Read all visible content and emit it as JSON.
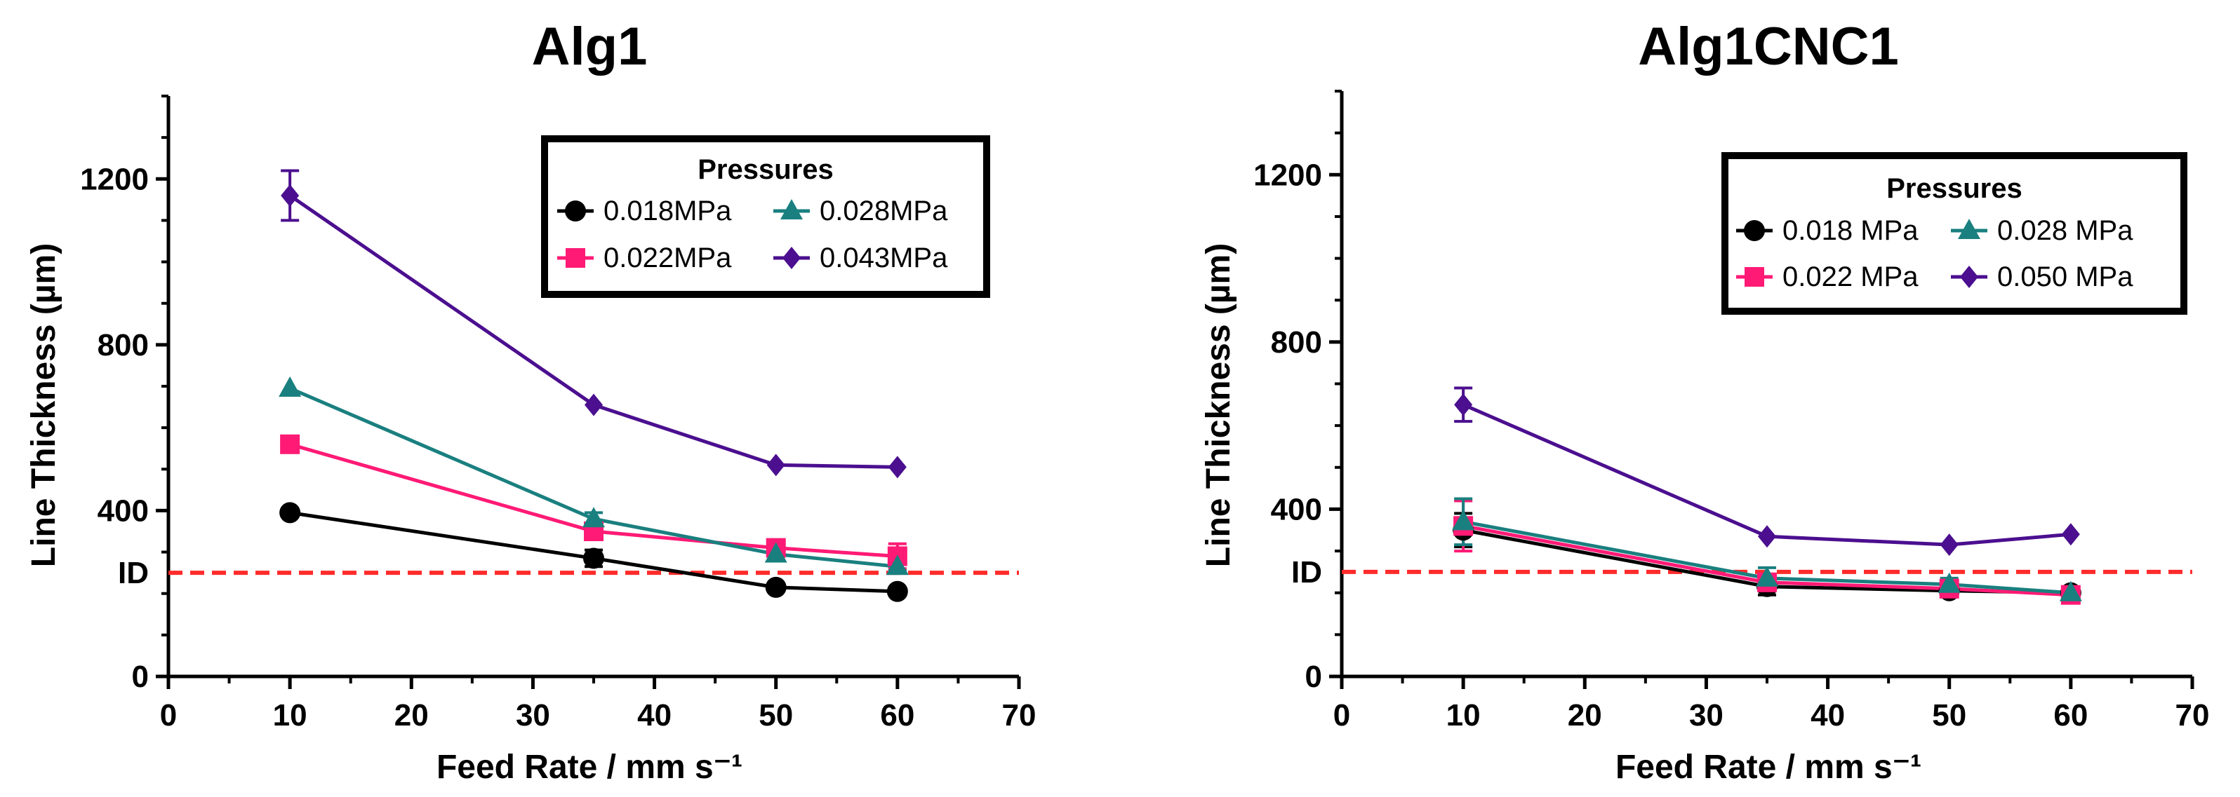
{
  "chart_data": [
    {
      "type": "line",
      "title": "Alg1",
      "xlabel": "Feed Rate / mm s⁻¹",
      "ylabel": "Line Thickness (µm)",
      "xlim": [
        0,
        70
      ],
      "ylim": [
        0,
        1400
      ],
      "xticks": [
        0,
        10,
        20,
        30,
        40,
        50,
        60,
        70
      ],
      "yticks": [
        0,
        400,
        800,
        1200
      ],
      "id_line": {
        "label": "ID",
        "value": 250,
        "color": "#ff2b2b"
      },
      "legend": {
        "title": "Pressures",
        "position": "top-right"
      },
      "series": [
        {
          "name": "0.018MPa",
          "marker": "circle",
          "color": "#000000",
          "x": [
            10,
            35,
            50,
            60
          ],
          "y": [
            395,
            285,
            215,
            205
          ],
          "err": [
            0,
            20,
            8,
            5
          ]
        },
        {
          "name": "0.022MPa",
          "marker": "square",
          "color": "#ff1a75",
          "x": [
            10,
            35,
            50,
            60
          ],
          "y": [
            560,
            350,
            310,
            290
          ],
          "err": [
            0,
            20,
            12,
            30
          ]
        },
        {
          "name": "0.028MPa",
          "marker": "triangle",
          "color": "#1a7f7f",
          "x": [
            10,
            35,
            50,
            60
          ],
          "y": [
            695,
            380,
            295,
            265
          ],
          "err": [
            0,
            15,
            15,
            10
          ]
        },
        {
          "name": "0.043MPa",
          "marker": "diamond",
          "color": "#4b0f8f",
          "x": [
            10,
            35,
            50,
            60
          ],
          "y": [
            1160,
            655,
            510,
            505
          ],
          "err": [
            60,
            0,
            0,
            0
          ]
        }
      ]
    },
    {
      "type": "line",
      "title": "Alg1CNC1",
      "xlabel": "Feed Rate / mm s⁻¹",
      "ylabel": "Line Thickness (µm)",
      "xlim": [
        0,
        70
      ],
      "ylim": [
        0,
        1400
      ],
      "xticks": [
        0,
        10,
        20,
        30,
        40,
        50,
        60,
        70
      ],
      "yticks": [
        0,
        400,
        800,
        1200
      ],
      "id_line": {
        "label": "ID",
        "value": 250,
        "color": "#ff2b2b"
      },
      "legend": {
        "title": "Pressures",
        "position": "top-right"
      },
      "series": [
        {
          "name": "0.018 MPa",
          "marker": "circle",
          "color": "#000000",
          "x": [
            10,
            35,
            50,
            60
          ],
          "y": [
            350,
            215,
            205,
            200
          ],
          "err": [
            40,
            20,
            15,
            10
          ]
        },
        {
          "name": "0.022 MPa",
          "marker": "square",
          "color": "#ff1a75",
          "x": [
            10,
            35,
            50,
            60
          ],
          "y": [
            360,
            225,
            210,
            195
          ],
          "err": [
            60,
            20,
            15,
            10
          ]
        },
        {
          "name": "0.028 MPa",
          "marker": "triangle",
          "color": "#1a7f7f",
          "x": [
            10,
            35,
            50,
            60
          ],
          "y": [
            370,
            235,
            220,
            200
          ],
          "err": [
            55,
            25,
            15,
            10
          ]
        },
        {
          "name": "0.050 MPa",
          "marker": "diamond",
          "color": "#4b0f8f",
          "x": [
            10,
            35,
            50,
            60
          ],
          "y": [
            650,
            335,
            315,
            340
          ],
          "err": [
            40,
            0,
            0,
            0
          ]
        }
      ]
    }
  ]
}
